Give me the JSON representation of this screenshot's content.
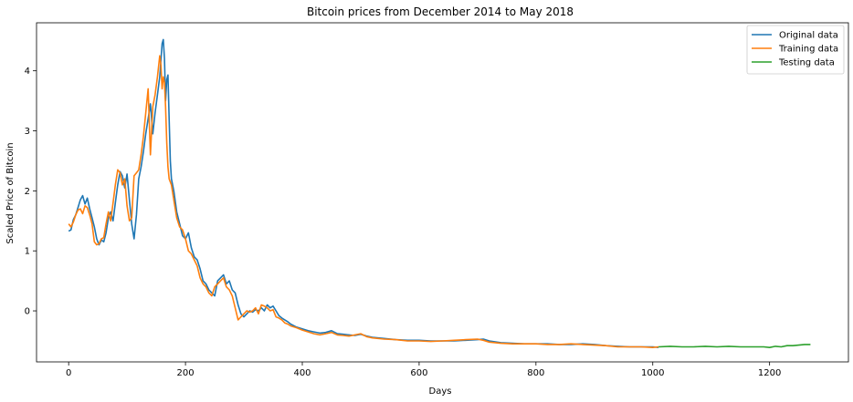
{
  "chart_data": {
    "type": "line",
    "title": "Bitcoin prices from December 2014 to May 2018",
    "xlabel": "Days",
    "ylabel": "Scaled Price of Bitcoin",
    "xlim": [
      -55,
      1335
    ],
    "ylim": [
      -0.85,
      4.8
    ],
    "xticks": [
      0,
      200,
      400,
      600,
      800,
      1000,
      1200
    ],
    "yticks": [
      0,
      1,
      2,
      3,
      4
    ],
    "legend_position": "top-right",
    "series": [
      {
        "name": "Original data",
        "color": "#1f77b4",
        "points": [
          [
            0,
            1.33
          ],
          [
            4,
            1.35
          ],
          [
            8,
            1.52
          ],
          [
            12,
            1.6
          ],
          [
            16,
            1.72
          ],
          [
            20,
            1.85
          ],
          [
            24,
            1.92
          ],
          [
            28,
            1.78
          ],
          [
            32,
            1.88
          ],
          [
            36,
            1.7
          ],
          [
            40,
            1.55
          ],
          [
            44,
            1.4
          ],
          [
            48,
            1.2
          ],
          [
            52,
            1.1
          ],
          [
            56,
            1.18
          ],
          [
            60,
            1.15
          ],
          [
            64,
            1.3
          ],
          [
            68,
            1.55
          ],
          [
            72,
            1.65
          ],
          [
            76,
            1.5
          ],
          [
            80,
            1.8
          ],
          [
            84,
            2.1
          ],
          [
            88,
            2.32
          ],
          [
            92,
            2.25
          ],
          [
            96,
            2.05
          ],
          [
            100,
            2.28
          ],
          [
            104,
            1.85
          ],
          [
            108,
            1.45
          ],
          [
            112,
            1.2
          ],
          [
            116,
            1.6
          ],
          [
            120,
            2.2
          ],
          [
            124,
            2.4
          ],
          [
            128,
            2.65
          ],
          [
            132,
            2.95
          ],
          [
            136,
            3.2
          ],
          [
            140,
            3.45
          ],
          [
            144,
            2.95
          ],
          [
            148,
            3.3
          ],
          [
            152,
            3.6
          ],
          [
            156,
            3.9
          ],
          [
            160,
            4.45
          ],
          [
            162,
            4.52
          ],
          [
            164,
            4.2
          ],
          [
            166,
            3.5
          ],
          [
            168,
            3.85
          ],
          [
            170,
            3.93
          ],
          [
            172,
            3.2
          ],
          [
            174,
            2.5
          ],
          [
            176,
            2.2
          ],
          [
            180,
            2.0
          ],
          [
            185,
            1.65
          ],
          [
            190,
            1.45
          ],
          [
            195,
            1.25
          ],
          [
            200,
            1.2
          ],
          [
            205,
            1.3
          ],
          [
            210,
            1.05
          ],
          [
            215,
            0.9
          ],
          [
            220,
            0.85
          ],
          [
            225,
            0.7
          ],
          [
            230,
            0.5
          ],
          [
            235,
            0.45
          ],
          [
            240,
            0.35
          ],
          [
            245,
            0.3
          ],
          [
            250,
            0.25
          ],
          [
            255,
            0.5
          ],
          [
            260,
            0.55
          ],
          [
            265,
            0.6
          ],
          [
            270,
            0.45
          ],
          [
            275,
            0.5
          ],
          [
            280,
            0.35
          ],
          [
            285,
            0.3
          ],
          [
            290,
            0.1
          ],
          [
            295,
            -0.05
          ],
          [
            300,
            -0.1
          ],
          [
            305,
            -0.05
          ],
          [
            310,
            0.0
          ],
          [
            315,
            -0.02
          ],
          [
            320,
            0.02
          ],
          [
            325,
            0.0
          ],
          [
            330,
            0.05
          ],
          [
            335,
            0.0
          ],
          [
            340,
            0.1
          ],
          [
            345,
            0.05
          ],
          [
            350,
            0.08
          ],
          [
            355,
            0.0
          ],
          [
            360,
            -0.08
          ],
          [
            365,
            -0.12
          ],
          [
            370,
            -0.15
          ],
          [
            375,
            -0.18
          ],
          [
            380,
            -0.22
          ],
          [
            390,
            -0.27
          ],
          [
            400,
            -0.3
          ],
          [
            410,
            -0.33
          ],
          [
            420,
            -0.35
          ],
          [
            430,
            -0.37
          ],
          [
            440,
            -0.36
          ],
          [
            450,
            -0.33
          ],
          [
            460,
            -0.38
          ],
          [
            470,
            -0.39
          ],
          [
            480,
            -0.4
          ],
          [
            490,
            -0.41
          ],
          [
            500,
            -0.39
          ],
          [
            510,
            -0.42
          ],
          [
            520,
            -0.44
          ],
          [
            540,
            -0.46
          ],
          [
            560,
            -0.48
          ],
          [
            580,
            -0.49
          ],
          [
            600,
            -0.49
          ],
          [
            620,
            -0.5
          ],
          [
            640,
            -0.5
          ],
          [
            660,
            -0.5
          ],
          [
            680,
            -0.49
          ],
          [
            700,
            -0.48
          ],
          [
            710,
            -0.47
          ],
          [
            720,
            -0.5
          ],
          [
            740,
            -0.53
          ],
          [
            760,
            -0.54
          ],
          [
            780,
            -0.55
          ],
          [
            800,
            -0.55
          ],
          [
            820,
            -0.55
          ],
          [
            840,
            -0.56
          ],
          [
            860,
            -0.56
          ],
          [
            880,
            -0.55
          ],
          [
            900,
            -0.56
          ],
          [
            920,
            -0.58
          ],
          [
            940,
            -0.59
          ],
          [
            960,
            -0.6
          ],
          [
            980,
            -0.6
          ],
          [
            1000,
            -0.6
          ],
          [
            1010,
            -0.61
          ]
        ]
      },
      {
        "name": "Training data",
        "color": "#ff7f0e",
        "points": [
          [
            0,
            1.45
          ],
          [
            4,
            1.4
          ],
          [
            8,
            1.48
          ],
          [
            12,
            1.6
          ],
          [
            16,
            1.68
          ],
          [
            20,
            1.7
          ],
          [
            24,
            1.62
          ],
          [
            28,
            1.75
          ],
          [
            32,
            1.72
          ],
          [
            36,
            1.6
          ],
          [
            40,
            1.45
          ],
          [
            44,
            1.15
          ],
          [
            48,
            1.1
          ],
          [
            52,
            1.12
          ],
          [
            56,
            1.2
          ],
          [
            60,
            1.22
          ],
          [
            64,
            1.45
          ],
          [
            68,
            1.65
          ],
          [
            72,
            1.5
          ],
          [
            76,
            1.8
          ],
          [
            80,
            2.1
          ],
          [
            84,
            2.35
          ],
          [
            88,
            2.3
          ],
          [
            92,
            2.1
          ],
          [
            96,
            2.2
          ],
          [
            100,
            1.75
          ],
          [
            104,
            1.5
          ],
          [
            108,
            1.55
          ],
          [
            112,
            2.25
          ],
          [
            116,
            2.3
          ],
          [
            120,
            2.35
          ],
          [
            124,
            2.6
          ],
          [
            128,
            2.9
          ],
          [
            132,
            3.3
          ],
          [
            136,
            3.7
          ],
          [
            140,
            2.6
          ],
          [
            144,
            3.4
          ],
          [
            148,
            3.6
          ],
          [
            152,
            3.9
          ],
          [
            156,
            4.25
          ],
          [
            158,
            4.1
          ],
          [
            160,
            3.7
          ],
          [
            162,
            3.9
          ],
          [
            164,
            3.8
          ],
          [
            166,
            3.4
          ],
          [
            168,
            2.8
          ],
          [
            170,
            2.4
          ],
          [
            172,
            2.2
          ],
          [
            176,
            2.1
          ],
          [
            180,
            1.85
          ],
          [
            185,
            1.55
          ],
          [
            190,
            1.4
          ],
          [
            195,
            1.35
          ],
          [
            200,
            1.2
          ],
          [
            205,
            1.0
          ],
          [
            210,
            0.95
          ],
          [
            215,
            0.85
          ],
          [
            220,
            0.75
          ],
          [
            225,
            0.55
          ],
          [
            230,
            0.45
          ],
          [
            235,
            0.4
          ],
          [
            240,
            0.3
          ],
          [
            245,
            0.25
          ],
          [
            250,
            0.4
          ],
          [
            255,
            0.45
          ],
          [
            260,
            0.5
          ],
          [
            265,
            0.55
          ],
          [
            270,
            0.4
          ],
          [
            275,
            0.35
          ],
          [
            280,
            0.25
          ],
          [
            285,
            0.05
          ],
          [
            290,
            -0.15
          ],
          [
            295,
            -0.1
          ],
          [
            300,
            -0.05
          ],
          [
            305,
            0.0
          ],
          [
            310,
            -0.02
          ],
          [
            315,
            0.0
          ],
          [
            320,
            0.05
          ],
          [
            325,
            -0.05
          ],
          [
            330,
            0.1
          ],
          [
            335,
            0.08
          ],
          [
            340,
            0.05
          ],
          [
            345,
            0.0
          ],
          [
            350,
            0.02
          ],
          [
            355,
            -0.1
          ],
          [
            360,
            -0.12
          ],
          [
            365,
            -0.15
          ],
          [
            370,
            -0.2
          ],
          [
            375,
            -0.22
          ],
          [
            380,
            -0.25
          ],
          [
            390,
            -0.28
          ],
          [
            400,
            -0.32
          ],
          [
            410,
            -0.35
          ],
          [
            420,
            -0.38
          ],
          [
            430,
            -0.4
          ],
          [
            440,
            -0.38
          ],
          [
            450,
            -0.36
          ],
          [
            460,
            -0.4
          ],
          [
            470,
            -0.41
          ],
          [
            480,
            -0.42
          ],
          [
            490,
            -0.4
          ],
          [
            500,
            -0.38
          ],
          [
            510,
            -0.43
          ],
          [
            520,
            -0.45
          ],
          [
            540,
            -0.47
          ],
          [
            560,
            -0.48
          ],
          [
            580,
            -0.5
          ],
          [
            600,
            -0.5
          ],
          [
            620,
            -0.51
          ],
          [
            640,
            -0.5
          ],
          [
            660,
            -0.49
          ],
          [
            680,
            -0.48
          ],
          [
            700,
            -0.47
          ],
          [
            710,
            -0.49
          ],
          [
            720,
            -0.52
          ],
          [
            740,
            -0.54
          ],
          [
            760,
            -0.55
          ],
          [
            780,
            -0.55
          ],
          [
            800,
            -0.55
          ],
          [
            820,
            -0.56
          ],
          [
            840,
            -0.56
          ],
          [
            860,
            -0.55
          ],
          [
            880,
            -0.56
          ],
          [
            900,
            -0.57
          ],
          [
            920,
            -0.58
          ],
          [
            940,
            -0.6
          ],
          [
            960,
            -0.6
          ],
          [
            980,
            -0.6
          ],
          [
            1000,
            -0.61
          ],
          [
            1010,
            -0.6
          ]
        ]
      },
      {
        "name": "Testing data",
        "color": "#2ca02c",
        "points": [
          [
            1010,
            -0.6
          ],
          [
            1030,
            -0.59
          ],
          [
            1050,
            -0.6
          ],
          [
            1070,
            -0.6
          ],
          [
            1090,
            -0.59
          ],
          [
            1110,
            -0.6
          ],
          [
            1130,
            -0.59
          ],
          [
            1150,
            -0.6
          ],
          [
            1170,
            -0.6
          ],
          [
            1190,
            -0.6
          ],
          [
            1200,
            -0.61
          ],
          [
            1210,
            -0.59
          ],
          [
            1220,
            -0.6
          ],
          [
            1230,
            -0.58
          ],
          [
            1240,
            -0.58
          ],
          [
            1250,
            -0.57
          ],
          [
            1260,
            -0.56
          ],
          [
            1270,
            -0.56
          ]
        ]
      }
    ]
  }
}
